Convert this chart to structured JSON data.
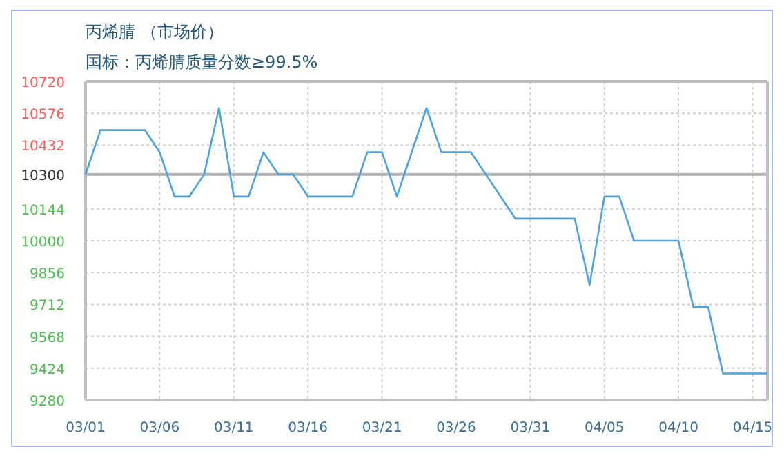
{
  "chart_data": {
    "type": "line",
    "title": "丙烯腈 （市场价）",
    "subtitle": "国标：丙烯腈质量分数≥99.5%",
    "x": [
      "--03-01",
      "--03-02",
      "--03-05",
      "--03-06",
      "--03-07",
      "--03-08",
      "--03-09",
      "--03-10",
      "--03-11",
      "--03-12",
      "--03-13",
      "--03-14",
      "--03-15",
      "--03-16",
      "--03-19",
      "--03-20",
      "--03-21",
      "--03-22",
      "--03-24",
      "--03-25",
      "--03-27",
      "--03-30",
      "--04-03",
      "--04-04",
      "--04-05",
      "--04-06",
      "--04-07",
      "--04-10",
      "--04-11",
      "--04-12",
      "--04-13",
      "--04-16"
    ],
    "series": [
      {
        "color": "#4ba3df",
        "values": [
          10300,
          10500,
          10500,
          10400,
          10200,
          10200,
          10300,
          10600,
          10200,
          10200,
          10400,
          10300,
          10300,
          10200,
          10200,
          10400,
          10400,
          10200,
          10600,
          10400,
          10400,
          10100,
          10100,
          9800,
          10200,
          10200,
          10000,
          10000,
          9700,
          9700,
          9400,
          9400
        ]
      }
    ],
    "xlim": [
      "--03-01",
      "--04-16"
    ],
    "xticks": [
      {
        "value": "--03-01",
        "label": "03/01"
      },
      {
        "value": "--03-06",
        "label": "03/06"
      },
      {
        "value": "--03-11",
        "label": "03/11"
      },
      {
        "value": "--03-16",
        "label": "03/16"
      },
      {
        "value": "--03-21",
        "label": "03/21"
      },
      {
        "value": "--03-26",
        "label": "03/26"
      },
      {
        "value": "--03-31",
        "label": "03/31"
      },
      {
        "value": "--04-05",
        "label": "04/05"
      },
      {
        "value": "--04-10",
        "label": "04/10"
      },
      {
        "value": "--04-15",
        "label": "04/15"
      }
    ],
    "ylim": [
      9280,
      10720
    ],
    "yticks": [
      10720,
      10576,
      10432,
      10300,
      10144,
      10000,
      9856,
      9712,
      9568,
      9424,
      9280
    ],
    "ref_lines": [
      {
        "axis": "y",
        "value": 10300,
        "color": "#b4b4b4"
      }
    ],
    "grid": true,
    "marker": "none",
    "line_style": "solid"
  }
}
